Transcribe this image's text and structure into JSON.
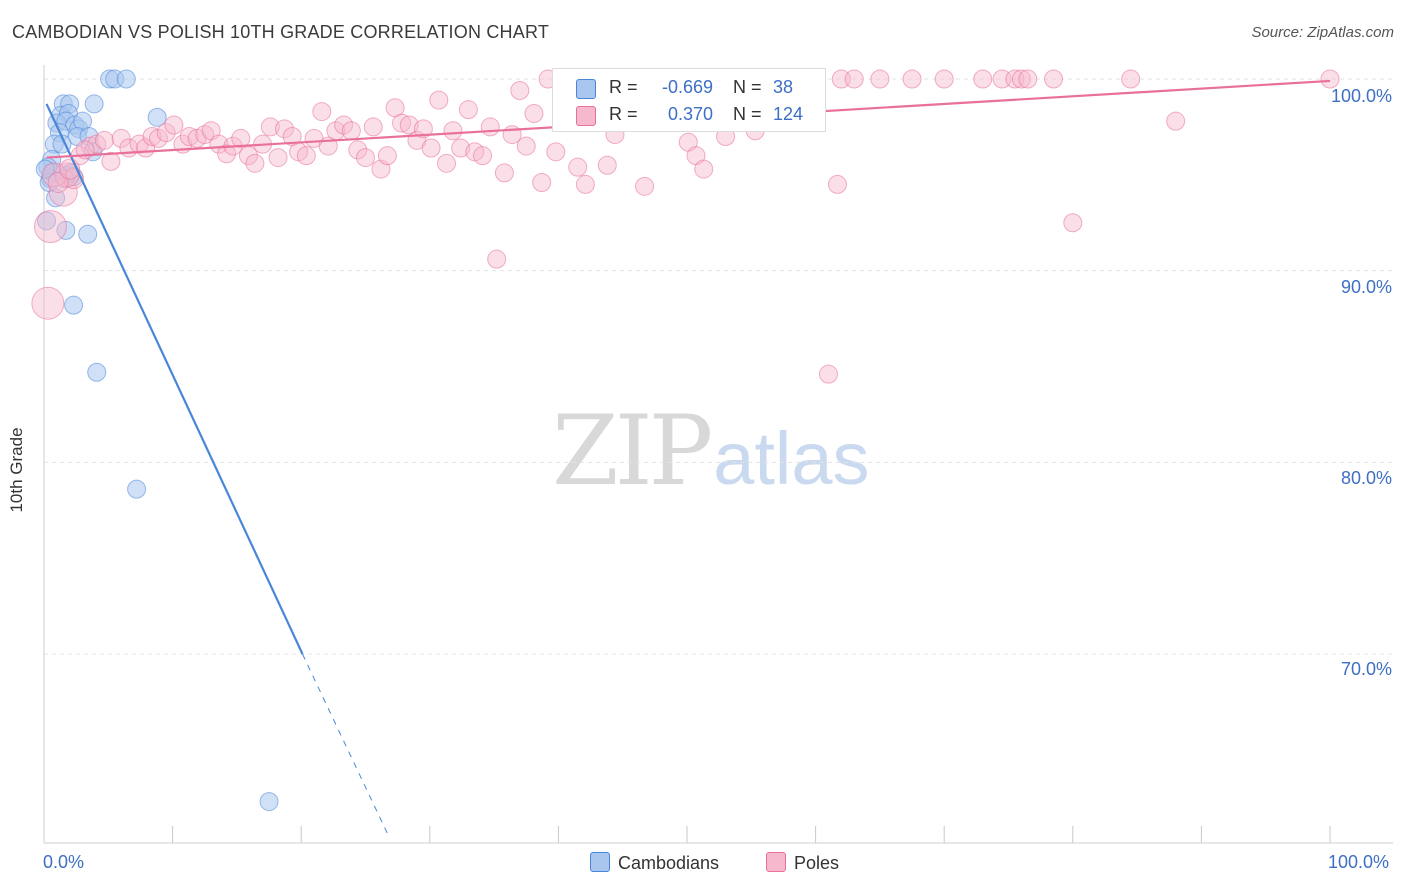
{
  "title": "CAMBODIAN VS POLISH 10TH GRADE CORRELATION CHART",
  "source": "Source: ZipAtlas.com",
  "watermark": {
    "zip": "ZIP",
    "atlas": "atlas"
  },
  "colors": {
    "blue": "#4a86d8",
    "blue_fill": "#a9c6ee",
    "pink": "#e8709a",
    "pink_fill": "#f6b8cc",
    "tick_text": "#3d6fc4",
    "grid": "#e3e3e3"
  },
  "legend": {
    "rows": [
      {
        "series": "Cambodians",
        "r_label": "R =",
        "r_value": "-0.669",
        "n_label": "N =",
        "n_value": "38"
      },
      {
        "series": "Poles",
        "r_label": "R =",
        "r_value": "0.370",
        "n_label": "N =",
        "n_value": "124"
      }
    ]
  },
  "chart_data": {
    "type": "scatter",
    "title": "CAMBODIAN VS POLISH 10TH GRADE CORRELATION CHART",
    "xlabel": "",
    "ylabel": "10th Grade",
    "xlim": [
      0,
      105
    ],
    "ylim": [
      60.5,
      101.0
    ],
    "x_tick_labels": [
      "0.0%",
      "100.0%"
    ],
    "y_ticks": [
      {
        "value": 100,
        "label": "100.0%"
      },
      {
        "value": 90,
        "label": "90.0%"
      },
      {
        "value": 80,
        "label": "80.0%"
      },
      {
        "value": 70,
        "label": "70.0%"
      }
    ],
    "grid": true,
    "series": [
      {
        "name": "Cambodians",
        "color": "#4a86d8",
        "fill": "#a9c6ee",
        "trend": {
          "x0": 0.2,
          "y0": 98.7,
          "x1": 20.1,
          "y1": 70.0,
          "dash_to_x": 26.8,
          "dash_to_y": 60.5
        },
        "points": [
          [
            5.1,
            100.0
          ],
          [
            5.5,
            100.0
          ],
          [
            6.4,
            100.0
          ],
          [
            1.5,
            98.7
          ],
          [
            2.0,
            98.7
          ],
          [
            3.9,
            98.7
          ],
          [
            1.3,
            98.1
          ],
          [
            1.9,
            98.2
          ],
          [
            8.8,
            98.0
          ],
          [
            1.0,
            97.7
          ],
          [
            1.7,
            97.8
          ],
          [
            2.4,
            97.6
          ],
          [
            2.7,
            97.4
          ],
          [
            3.0,
            97.8
          ],
          [
            1.2,
            97.2
          ],
          [
            2.6,
            97.0
          ],
          [
            3.5,
            97.0
          ],
          [
            0.8,
            96.6
          ],
          [
            1.4,
            96.6
          ],
          [
            3.8,
            96.2
          ],
          [
            0.6,
            95.8
          ],
          [
            0.3,
            95.4
          ],
          [
            0.7,
            95.1
          ],
          [
            1.8,
            95.0
          ],
          [
            2.1,
            95.1
          ],
          [
            2.3,
            94.9
          ],
          [
            0.5,
            94.8
          ],
          [
            0.4,
            94.6
          ],
          [
            1.6,
            94.8
          ],
          [
            0.2,
            92.6
          ],
          [
            1.7,
            92.1
          ],
          [
            3.4,
            91.9
          ],
          [
            2.3,
            88.2
          ],
          [
            4.1,
            84.7
          ],
          [
            7.2,
            78.6
          ],
          [
            17.5,
            62.3
          ],
          [
            0.9,
            93.8
          ],
          [
            0.1,
            95.3
          ]
        ],
        "sizes": [
          9,
          9,
          9,
          9,
          9,
          9,
          9,
          9,
          9,
          9,
          9,
          9,
          9,
          9,
          9,
          9,
          9,
          9,
          9,
          9,
          9,
          9,
          9,
          9,
          9,
          9,
          9,
          9,
          9,
          9,
          9,
          9,
          9,
          9,
          9,
          9,
          9,
          9
        ]
      },
      {
        "name": "Poles",
        "color": "#e8709a",
        "fill": "#f6b8cc",
        "trend": {
          "x0": 0.2,
          "y0": 95.9,
          "x1": 100.0,
          "y1": 99.9
        },
        "points": [
          [
            0.5,
            92.3
          ],
          [
            0.3,
            88.3
          ],
          [
            1.5,
            94.1
          ],
          [
            2.3,
            94.8
          ],
          [
            1.8,
            95.0
          ],
          [
            3.6,
            96.5
          ],
          [
            4.1,
            96.6
          ],
          [
            4.7,
            96.8
          ],
          [
            5.2,
            95.7
          ],
          [
            6.0,
            96.9
          ],
          [
            6.6,
            96.4
          ],
          [
            7.4,
            96.6
          ],
          [
            7.9,
            96.4
          ],
          [
            8.4,
            97.0
          ],
          [
            8.9,
            96.9
          ],
          [
            9.5,
            97.2
          ],
          [
            10.1,
            97.6
          ],
          [
            10.8,
            96.6
          ],
          [
            11.3,
            97.0
          ],
          [
            11.9,
            96.9
          ],
          [
            12.5,
            97.1
          ],
          [
            13.0,
            97.3
          ],
          [
            13.6,
            96.6
          ],
          [
            14.2,
            96.1
          ],
          [
            14.7,
            96.5
          ],
          [
            15.3,
            96.9
          ],
          [
            15.9,
            96.0
          ],
          [
            16.4,
            95.6
          ],
          [
            17.0,
            96.6
          ],
          [
            17.6,
            97.5
          ],
          [
            18.2,
            95.9
          ],
          [
            18.7,
            97.4
          ],
          [
            19.3,
            97.0
          ],
          [
            19.8,
            96.2
          ],
          [
            20.4,
            96.0
          ],
          [
            21.0,
            96.9
          ],
          [
            21.6,
            98.3
          ],
          [
            22.1,
            96.5
          ],
          [
            22.7,
            97.3
          ],
          [
            23.3,
            97.6
          ],
          [
            23.9,
            97.3
          ],
          [
            24.4,
            96.3
          ],
          [
            25.0,
            95.9
          ],
          [
            25.6,
            97.5
          ],
          [
            26.2,
            95.3
          ],
          [
            26.7,
            96.0
          ],
          [
            27.3,
            98.5
          ],
          [
            27.8,
            97.7
          ],
          [
            28.4,
            97.6
          ],
          [
            29.0,
            96.8
          ],
          [
            29.5,
            97.4
          ],
          [
            30.1,
            96.4
          ],
          [
            30.7,
            98.9
          ],
          [
            31.3,
            95.6
          ],
          [
            31.8,
            97.3
          ],
          [
            32.4,
            96.4
          ],
          [
            33.0,
            98.4
          ],
          [
            33.5,
            96.2
          ],
          [
            34.1,
            96.0
          ],
          [
            34.7,
            97.5
          ],
          [
            35.2,
            90.6
          ],
          [
            35.8,
            95.1
          ],
          [
            36.4,
            97.1
          ],
          [
            37.0,
            99.4
          ],
          [
            37.5,
            96.5
          ],
          [
            38.1,
            98.2
          ],
          [
            38.7,
            94.6
          ],
          [
            39.2,
            100.0
          ],
          [
            39.8,
            96.2
          ],
          [
            40.4,
            99.8
          ],
          [
            41.0,
            99.6
          ],
          [
            41.5,
            95.4
          ],
          [
            42.1,
            94.5
          ],
          [
            42.7,
            99.9
          ],
          [
            43.2,
            100.0
          ],
          [
            43.8,
            95.5
          ],
          [
            44.4,
            97.1
          ],
          [
            44.9,
            99.4
          ],
          [
            45.5,
            100.0
          ],
          [
            46.1,
            99.7
          ],
          [
            46.7,
            94.4
          ],
          [
            47.2,
            98.3
          ],
          [
            47.8,
            100.0
          ],
          [
            48.4,
            99.8
          ],
          [
            49.0,
            100.0
          ],
          [
            49.5,
            100.0
          ],
          [
            50.1,
            96.7
          ],
          [
            50.7,
            96.0
          ],
          [
            51.3,
            95.3
          ],
          [
            51.8,
            100.0
          ],
          [
            52.4,
            99.9
          ],
          [
            53.0,
            97.0
          ],
          [
            53.5,
            100.0
          ],
          [
            54.1,
            100.0
          ],
          [
            54.7,
            99.9
          ],
          [
            55.3,
            97.3
          ],
          [
            55.8,
            100.0
          ],
          [
            56.4,
            99.7
          ],
          [
            57.0,
            99.5
          ],
          [
            57.6,
            100.0
          ],
          [
            58.1,
            99.9
          ],
          [
            60.0,
            100.0
          ],
          [
            61.0,
            84.6
          ],
          [
            61.7,
            94.5
          ],
          [
            62.0,
            100.0
          ],
          [
            63.0,
            100.0
          ],
          [
            65.0,
            100.0
          ],
          [
            67.5,
            100.0
          ],
          [
            70.0,
            100.0
          ],
          [
            73.0,
            100.0
          ],
          [
            74.5,
            100.0
          ],
          [
            75.5,
            100.0
          ],
          [
            76.0,
            100.0
          ],
          [
            76.5,
            100.0
          ],
          [
            78.5,
            100.0
          ],
          [
            80.0,
            92.5
          ],
          [
            84.5,
            100.0
          ],
          [
            88.0,
            97.8
          ],
          [
            100.0,
            100.0
          ],
          [
            0.8,
            95.0
          ],
          [
            1.1,
            94.6
          ],
          [
            2.0,
            95.3
          ],
          [
            2.8,
            96.0
          ],
          [
            3.2,
            96.3
          ]
        ],
        "sizes": [
          16,
          16,
          14,
          10,
          12,
          9,
          9,
          9,
          9,
          9,
          9,
          9,
          9,
          9,
          9,
          9,
          9,
          9,
          9,
          9,
          9,
          9,
          9,
          9,
          9,
          9,
          9,
          9,
          9,
          9,
          9,
          9,
          9,
          9,
          9,
          9,
          9,
          9,
          9,
          9,
          9,
          9,
          9,
          9,
          9,
          9,
          9,
          9,
          9,
          9,
          9,
          9,
          9,
          9,
          9,
          9,
          9,
          9,
          9,
          9,
          9,
          9,
          9,
          9,
          9,
          9,
          9,
          9,
          9,
          9,
          9,
          9,
          9,
          9,
          9,
          9,
          9,
          9,
          9,
          9,
          9,
          9,
          9,
          9,
          9,
          9,
          9,
          9,
          9,
          9,
          9,
          9,
          9,
          9,
          9,
          9,
          9,
          9,
          9,
          9,
          9,
          9,
          9,
          9,
          9,
          9,
          9,
          9,
          9,
          9,
          9,
          9,
          9,
          9,
          9,
          9,
          9,
          9,
          9,
          12,
          10,
          10,
          9,
          9
        ]
      }
    ]
  }
}
